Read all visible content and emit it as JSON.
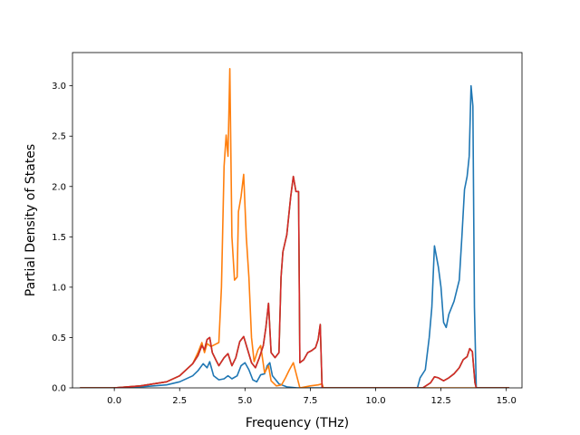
{
  "chart_data": {
    "type": "line",
    "title": "",
    "xlabel": "Frequency (THz)",
    "ylabel": "Partial Density of States",
    "xlim": [
      -1.6,
      15.6
    ],
    "ylim": [
      0.0,
      3.33
    ],
    "xticks": [
      0.0,
      2.5,
      5.0,
      7.5,
      10.0,
      12.5,
      15.0
    ],
    "xtick_labels": [
      "0.0",
      "2.5",
      "5.0",
      "7.5",
      "10.0",
      "12.5",
      "15.0"
    ],
    "yticks": [
      0.0,
      0.5,
      1.0,
      1.5,
      2.0,
      2.5,
      3.0
    ],
    "ytick_labels": [
      "0.0",
      "0.5",
      "1.0",
      "1.5",
      "2.0",
      "2.5",
      "3.0"
    ],
    "grid": false,
    "legend": "none",
    "series": [
      {
        "color": "#1f77b4",
        "points": [
          [
            -1.3,
            0
          ],
          [
            0,
            0
          ],
          [
            1,
            0.01
          ],
          [
            2,
            0.03
          ],
          [
            2.5,
            0.06
          ],
          [
            3,
            0.12
          ],
          [
            3.2,
            0.17
          ],
          [
            3.4,
            0.24
          ],
          [
            3.55,
            0.2
          ],
          [
            3.65,
            0.26
          ],
          [
            3.8,
            0.12
          ],
          [
            4,
            0.08
          ],
          [
            4.2,
            0.09
          ],
          [
            4.35,
            0.12
          ],
          [
            4.5,
            0.09
          ],
          [
            4.7,
            0.12
          ],
          [
            4.85,
            0.22
          ],
          [
            5,
            0.25
          ],
          [
            5.15,
            0.18
          ],
          [
            5.3,
            0.08
          ],
          [
            5.45,
            0.06
          ],
          [
            5.6,
            0.13
          ],
          [
            5.75,
            0.14
          ],
          [
            5.85,
            0.22
          ],
          [
            5.95,
            0.25
          ],
          [
            6.05,
            0.12
          ],
          [
            6.3,
            0.04
          ],
          [
            6.6,
            0.01
          ],
          [
            7,
            0.0
          ],
          [
            11.6,
            0.0
          ],
          [
            11.7,
            0.1
          ],
          [
            11.9,
            0.18
          ],
          [
            12.05,
            0.5
          ],
          [
            12.15,
            0.8
          ],
          [
            12.25,
            1.41
          ],
          [
            12.4,
            1.2
          ],
          [
            12.5,
            1.0
          ],
          [
            12.6,
            0.65
          ],
          [
            12.7,
            0.6
          ],
          [
            12.8,
            0.73
          ],
          [
            13,
            0.86
          ],
          [
            13.2,
            1.07
          ],
          [
            13.3,
            1.5
          ],
          [
            13.4,
            1.97
          ],
          [
            13.5,
            2.1
          ],
          [
            13.58,
            2.3
          ],
          [
            13.65,
            3.0
          ],
          [
            13.72,
            2.8
          ],
          [
            13.78,
            0.8
          ],
          [
            13.85,
            0.0
          ],
          [
            15.1,
            0.0
          ]
        ]
      },
      {
        "color": "#ff7f0e",
        "points": [
          [
            -1.3,
            0
          ],
          [
            0,
            0
          ],
          [
            1,
            0.02
          ],
          [
            2,
            0.06
          ],
          [
            2.5,
            0.12
          ],
          [
            3,
            0.24
          ],
          [
            3.2,
            0.35
          ],
          [
            3.35,
            0.45
          ],
          [
            3.45,
            0.35
          ],
          [
            3.55,
            0.44
          ],
          [
            3.7,
            0.41
          ],
          [
            3.85,
            0.43
          ],
          [
            4,
            0.45
          ],
          [
            4.1,
            1.0
          ],
          [
            4.2,
            2.2
          ],
          [
            4.28,
            2.51
          ],
          [
            4.35,
            2.3
          ],
          [
            4.42,
            3.17
          ],
          [
            4.5,
            1.5
          ],
          [
            4.6,
            1.07
          ],
          [
            4.7,
            1.1
          ],
          [
            4.75,
            1.75
          ],
          [
            4.85,
            1.9
          ],
          [
            4.95,
            2.12
          ],
          [
            5.05,
            1.5
          ],
          [
            5.15,
            1.1
          ],
          [
            5.25,
            0.5
          ],
          [
            5.35,
            0.26
          ],
          [
            5.5,
            0.38
          ],
          [
            5.6,
            0.42
          ],
          [
            5.75,
            0.15
          ],
          [
            5.9,
            0.22
          ],
          [
            6.0,
            0.07
          ],
          [
            6.2,
            0.02
          ],
          [
            6.4,
            0.03
          ],
          [
            6.55,
            0.1
          ],
          [
            6.7,
            0.18
          ],
          [
            6.85,
            0.25
          ],
          [
            7.0,
            0.1
          ],
          [
            7.1,
            0.0
          ],
          [
            7.5,
            0.02
          ],
          [
            7.8,
            0.03
          ],
          [
            7.95,
            0.04
          ],
          [
            8.0,
            0.0
          ],
          [
            15.1,
            0.0
          ]
        ]
      },
      {
        "color": "#2ca02c",
        "points": [
          [
            -1.3,
            0
          ],
          [
            0,
            0
          ],
          [
            1,
            0.02
          ],
          [
            2,
            0.06
          ],
          [
            2.5,
            0.12
          ],
          [
            3,
            0.24
          ],
          [
            3.2,
            0.32
          ],
          [
            3.35,
            0.42
          ],
          [
            3.45,
            0.38
          ],
          [
            3.55,
            0.48
          ],
          [
            3.65,
            0.5
          ],
          [
            3.75,
            0.35
          ],
          [
            3.9,
            0.27
          ],
          [
            4,
            0.22
          ],
          [
            4.2,
            0.3
          ],
          [
            4.35,
            0.34
          ],
          [
            4.5,
            0.22
          ],
          [
            4.65,
            0.3
          ],
          [
            4.8,
            0.46
          ],
          [
            4.95,
            0.51
          ],
          [
            5.1,
            0.38
          ],
          [
            5.25,
            0.25
          ],
          [
            5.4,
            0.2
          ],
          [
            5.55,
            0.3
          ],
          [
            5.7,
            0.42
          ],
          [
            5.8,
            0.6
          ],
          [
            5.9,
            0.84
          ],
          [
            6.0,
            0.35
          ],
          [
            6.15,
            0.3
          ],
          [
            6.3,
            0.35
          ],
          [
            6.38,
            1.1
          ],
          [
            6.45,
            1.35
          ],
          [
            6.6,
            1.52
          ],
          [
            6.75,
            1.9
          ],
          [
            6.85,
            2.1
          ],
          [
            6.95,
            1.95
          ],
          [
            7.05,
            1.95
          ],
          [
            7.1,
            0.25
          ],
          [
            7.25,
            0.28
          ],
          [
            7.4,
            0.35
          ],
          [
            7.55,
            0.37
          ],
          [
            7.7,
            0.4
          ],
          [
            7.8,
            0.48
          ],
          [
            7.88,
            0.63
          ],
          [
            7.95,
            0.0
          ],
          [
            11.8,
            0.0
          ],
          [
            12.1,
            0.05
          ],
          [
            12.25,
            0.11
          ],
          [
            12.4,
            0.1
          ],
          [
            12.6,
            0.07
          ],
          [
            12.8,
            0.1
          ],
          [
            13.0,
            0.14
          ],
          [
            13.2,
            0.2
          ],
          [
            13.35,
            0.28
          ],
          [
            13.5,
            0.31
          ],
          [
            13.6,
            0.39
          ],
          [
            13.7,
            0.36
          ],
          [
            13.8,
            0.05
          ],
          [
            13.85,
            0.0
          ],
          [
            15.1,
            0.0
          ]
        ]
      },
      {
        "color": "#d62728",
        "points": [
          [
            -1.3,
            0
          ],
          [
            0,
            0
          ],
          [
            1,
            0.02
          ],
          [
            2,
            0.06
          ],
          [
            2.5,
            0.12
          ],
          [
            3,
            0.24
          ],
          [
            3.2,
            0.32
          ],
          [
            3.35,
            0.42
          ],
          [
            3.45,
            0.38
          ],
          [
            3.55,
            0.48
          ],
          [
            3.65,
            0.5
          ],
          [
            3.75,
            0.35
          ],
          [
            3.9,
            0.27
          ],
          [
            4,
            0.22
          ],
          [
            4.2,
            0.3
          ],
          [
            4.35,
            0.34
          ],
          [
            4.5,
            0.22
          ],
          [
            4.65,
            0.3
          ],
          [
            4.8,
            0.46
          ],
          [
            4.95,
            0.51
          ],
          [
            5.1,
            0.38
          ],
          [
            5.25,
            0.25
          ],
          [
            5.4,
            0.2
          ],
          [
            5.55,
            0.3
          ],
          [
            5.7,
            0.42
          ],
          [
            5.8,
            0.6
          ],
          [
            5.9,
            0.84
          ],
          [
            6.0,
            0.35
          ],
          [
            6.15,
            0.3
          ],
          [
            6.3,
            0.35
          ],
          [
            6.38,
            1.1
          ],
          [
            6.45,
            1.35
          ],
          [
            6.6,
            1.52
          ],
          [
            6.75,
            1.9
          ],
          [
            6.85,
            2.1
          ],
          [
            6.95,
            1.95
          ],
          [
            7.05,
            1.95
          ],
          [
            7.1,
            0.25
          ],
          [
            7.25,
            0.28
          ],
          [
            7.4,
            0.35
          ],
          [
            7.55,
            0.37
          ],
          [
            7.7,
            0.4
          ],
          [
            7.8,
            0.48
          ],
          [
            7.88,
            0.63
          ],
          [
            7.95,
            0.0
          ],
          [
            11.8,
            0.0
          ],
          [
            12.1,
            0.05
          ],
          [
            12.25,
            0.11
          ],
          [
            12.4,
            0.1
          ],
          [
            12.6,
            0.07
          ],
          [
            12.8,
            0.1
          ],
          [
            13.0,
            0.14
          ],
          [
            13.2,
            0.2
          ],
          [
            13.35,
            0.28
          ],
          [
            13.5,
            0.31
          ],
          [
            13.6,
            0.39
          ],
          [
            13.7,
            0.36
          ],
          [
            13.8,
            0.05
          ],
          [
            13.85,
            0.0
          ],
          [
            15.1,
            0.0
          ]
        ]
      }
    ]
  }
}
